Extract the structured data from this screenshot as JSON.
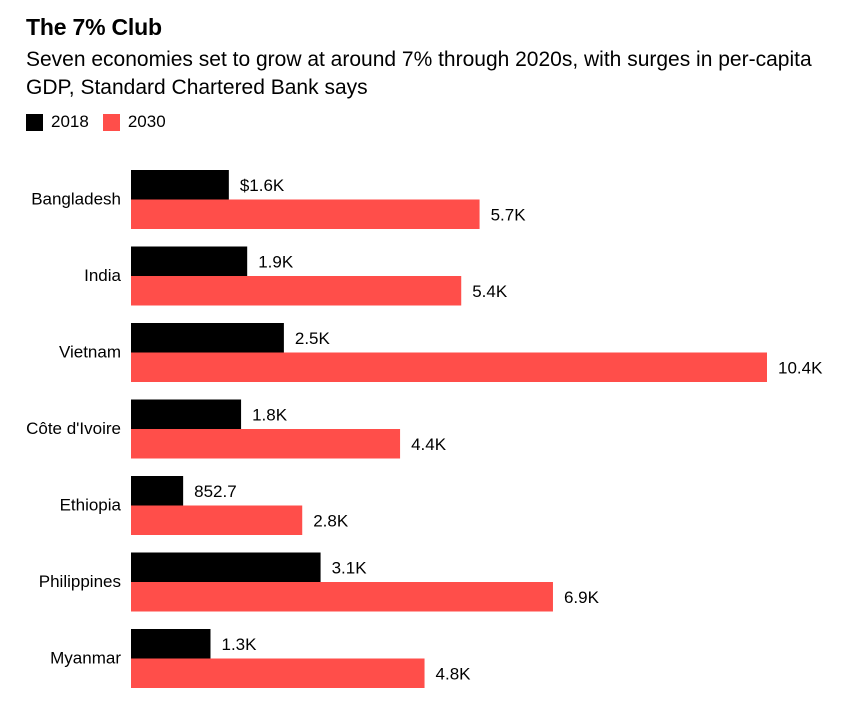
{
  "chart_data": {
    "type": "bar",
    "orientation": "horizontal",
    "title": "The 7% Club",
    "subtitle": "Seven economies set to grow at around 7% through 2020s, with surges in per-capita GDP, Standard Chartered Bank says",
    "categories": [
      "Bangladesh",
      "India",
      "Vietnam",
      "Côte d'Ivoire",
      "Ethiopia",
      "Philippines",
      "Myanmar"
    ],
    "series": [
      {
        "name": "2018",
        "color": "#000000",
        "values": [
          1600,
          1900,
          2500,
          1800,
          852.7,
          3100,
          1300
        ],
        "labels": [
          "$1.6K",
          "1.9K",
          "2.5K",
          "1.8K",
          "852.7",
          "3.1K",
          "1.3K"
        ]
      },
      {
        "name": "2030",
        "color": "#ff4e4a",
        "values": [
          5700,
          5400,
          10400,
          4400,
          2800,
          6900,
          4800
        ],
        "labels": [
          "5.7K",
          "5.4K",
          "10.4K",
          "4.4K",
          "2.8K",
          "6.9K",
          "4.8K"
        ]
      }
    ],
    "xlim": [
      0,
      10400
    ],
    "grid": false,
    "legend_position": "top-left"
  }
}
